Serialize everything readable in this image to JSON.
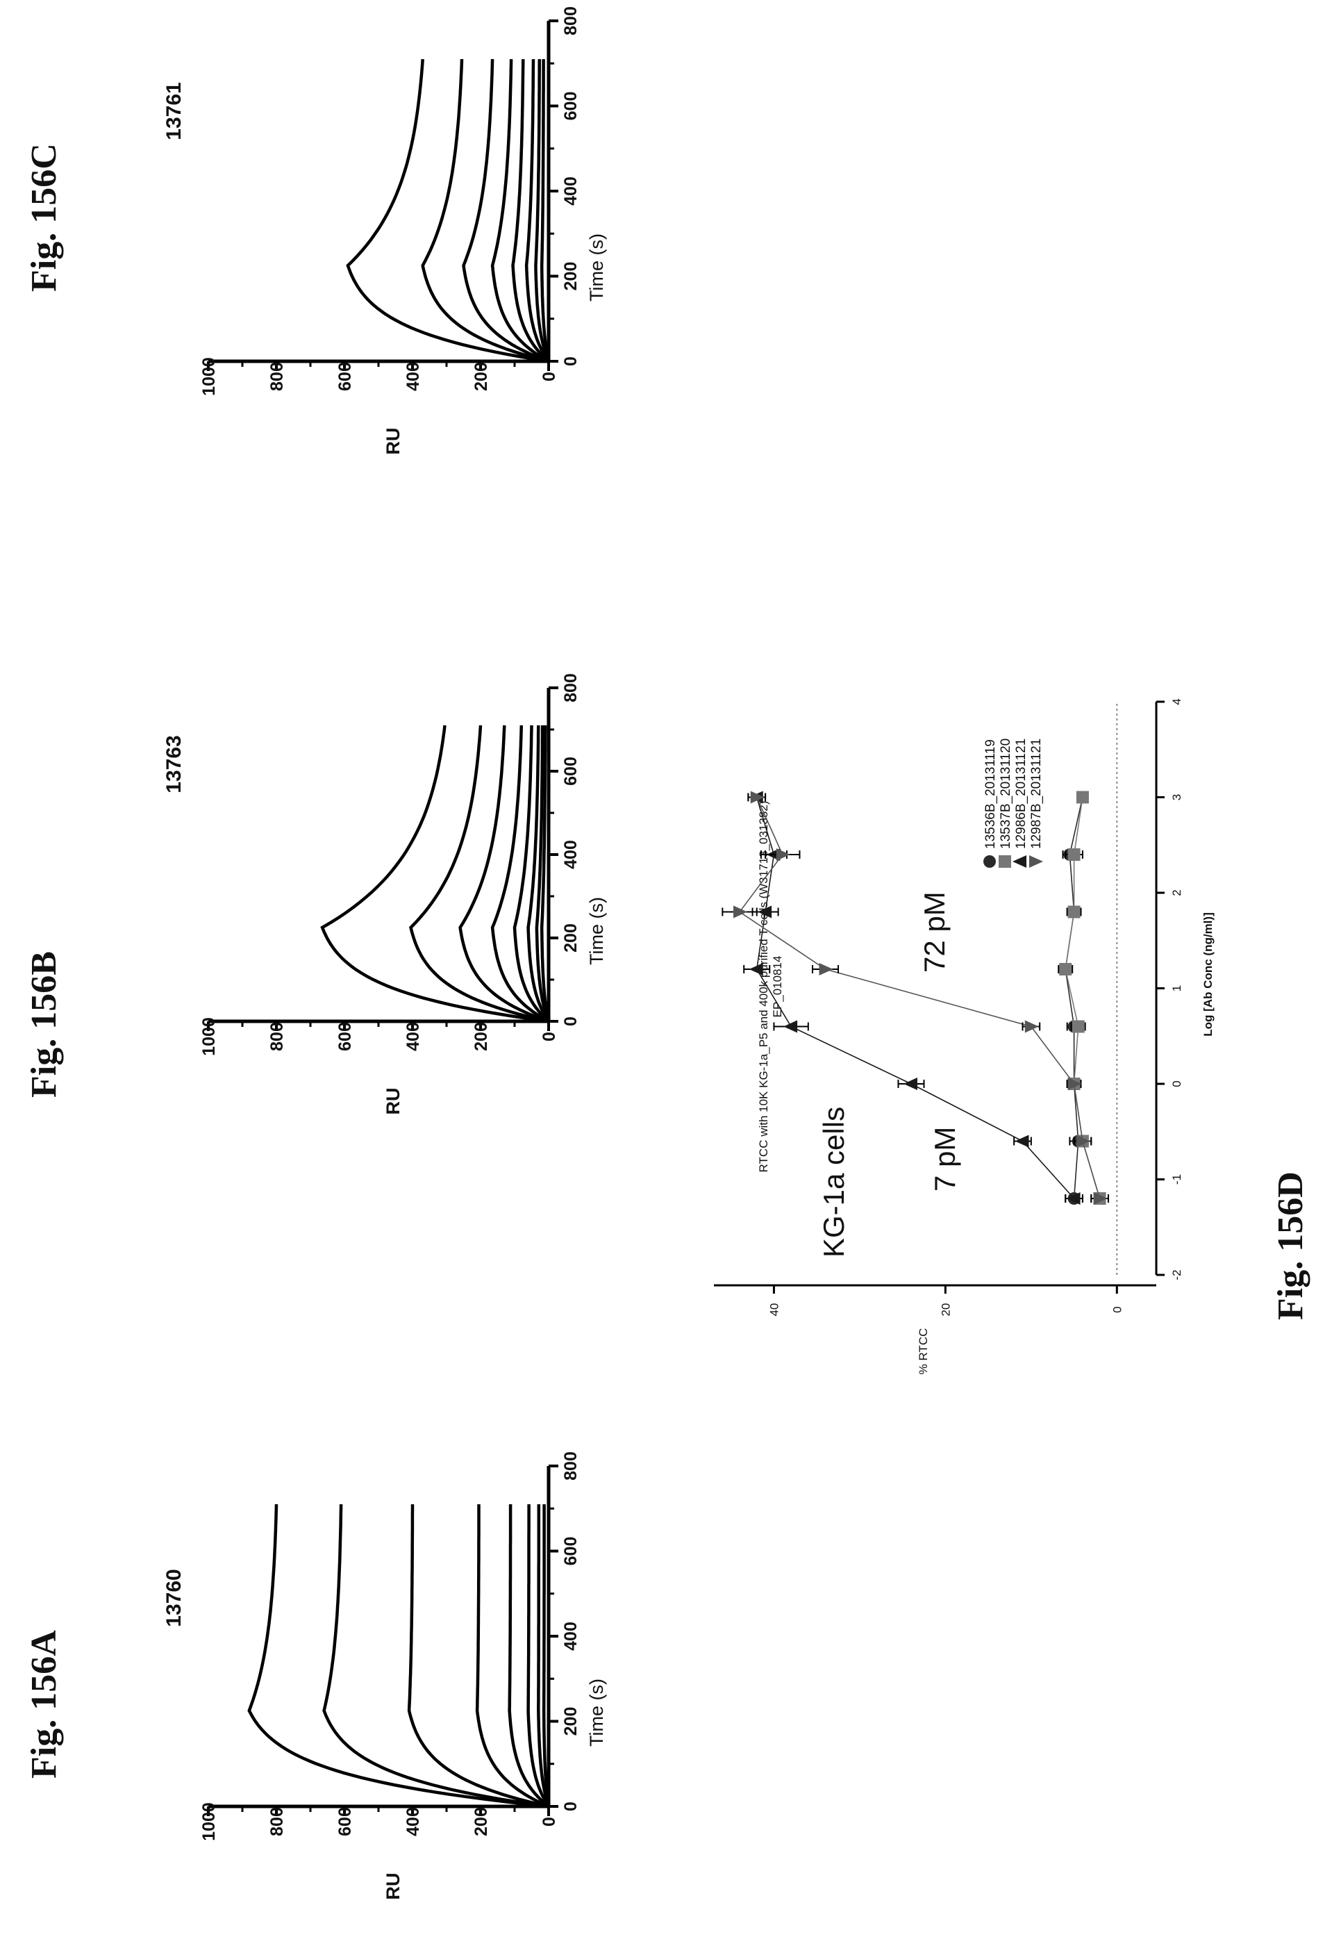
{
  "figure_labels": {
    "a": "Fig. 156A",
    "b": "Fig. 156B",
    "c": "Fig. 156C",
    "d": "Fig. 156D"
  },
  "chart_data": [
    {
      "type": "line",
      "title": "13760",
      "xlabel": "Time (s)",
      "ylabel": "RU",
      "xlim": [
        0,
        800
      ],
      "ylim": [
        0,
        1000
      ],
      "xticks": [
        0,
        200,
        400,
        600,
        800
      ],
      "yticks": [
        0,
        200,
        400,
        600,
        800,
        1000
      ],
      "injection_end": 225,
      "run_end": 710,
      "series": [
        {
          "peak": 880,
          "end": 800
        },
        {
          "peak": 660,
          "end": 610
        },
        {
          "peak": 410,
          "end": 400
        },
        {
          "peak": 210,
          "end": 205
        },
        {
          "peak": 115,
          "end": 112
        },
        {
          "peak": 60,
          "end": 58
        },
        {
          "peak": 30,
          "end": 29
        },
        {
          "peak": 14,
          "end": 13
        }
      ]
    },
    {
      "type": "line",
      "title": "13763",
      "xlabel": "Time (s)",
      "ylabel": "RU",
      "xlim": [
        0,
        800
      ],
      "ylim": [
        0,
        1000
      ],
      "xticks": [
        0,
        200,
        400,
        600,
        800
      ],
      "yticks": [
        0,
        200,
        400,
        600,
        800,
        1000
      ],
      "injection_end": 225,
      "run_end": 710,
      "series": [
        {
          "peak": 665,
          "end": 305
        },
        {
          "peak": 405,
          "end": 200
        },
        {
          "peak": 260,
          "end": 130
        },
        {
          "peak": 165,
          "end": 80
        },
        {
          "peak": 100,
          "end": 50
        },
        {
          "peak": 60,
          "end": 30
        },
        {
          "peak": 35,
          "end": 18
        },
        {
          "peak": 20,
          "end": 10
        }
      ]
    },
    {
      "type": "line",
      "title": "13761",
      "xlabel": "Time (s)",
      "ylabel": "RU",
      "xlim": [
        0,
        800
      ],
      "ylim": [
        0,
        1000
      ],
      "xticks": [
        0,
        200,
        400,
        600,
        800
      ],
      "yticks": [
        0,
        200,
        400,
        600,
        800,
        1000
      ],
      "injection_end": 225,
      "run_end": 710,
      "series": [
        {
          "peak": 590,
          "end": 370
        },
        {
          "peak": 370,
          "end": 255
        },
        {
          "peak": 250,
          "end": 165
        },
        {
          "peak": 165,
          "end": 110
        },
        {
          "peak": 105,
          "end": 75
        },
        {
          "peak": 65,
          "end": 45
        },
        {
          "peak": 38,
          "end": 27
        },
        {
          "peak": 20,
          "end": 15
        }
      ]
    },
    {
      "type": "line",
      "title": "RTCC with 10K KG-1a_P5 and 400k purified T cells (W31713_031382)",
      "subtitle": "EP_010814",
      "xlabel": "Log [Ab Conc (ng/ml)]",
      "ylabel": "% RTCC",
      "xlim": [
        -2,
        4
      ],
      "ylim": [
        -2,
        47
      ],
      "xticks": [
        -2,
        -1,
        0,
        1,
        2,
        3,
        4
      ],
      "yticks": [
        0,
        20,
        40
      ],
      "legend_position": "right",
      "annotations": [
        "KG-1a cells",
        "7 pM",
        "72 pM"
      ],
      "series": [
        {
          "name": "13536B_20131119",
          "marker": "circle",
          "x": [
            -1.2,
            -0.6,
            0.0,
            0.6,
            1.2,
            1.8,
            2.4,
            3.0
          ],
          "y": [
            5.0,
            4.5,
            5.0,
            5.0,
            6.0,
            5.0,
            5.5,
            4.0
          ],
          "err": [
            1.0,
            1.0,
            0.8,
            0.8,
            0.8,
            0.8,
            0.8,
            0.5
          ]
        },
        {
          "name": "13537B_20131120",
          "marker": "square",
          "x": [
            -1.2,
            -0.6,
            0.0,
            0.6,
            1.2,
            1.8,
            2.4,
            3.0
          ],
          "y": [
            2.0,
            4.0,
            5.0,
            4.5,
            6.0,
            5.0,
            5.0,
            4.0
          ],
          "err": [
            1.0,
            1.0,
            0.8,
            0.8,
            0.8,
            0.8,
            1.0,
            0.5
          ]
        },
        {
          "name": "12986B_20131121",
          "marker": "triangle-up",
          "x": [
            -1.2,
            -0.6,
            0.0,
            0.6,
            1.2,
            1.8,
            2.4,
            3.0
          ],
          "y": [
            5.0,
            11.0,
            24.0,
            38.0,
            42.0,
            41.0,
            40.0,
            42.0
          ],
          "err": [
            1.0,
            1.0,
            1.5,
            2.0,
            1.5,
            1.5,
            1.5,
            1.0
          ]
        },
        {
          "name": "12987B_20131121",
          "marker": "triangle-down",
          "x": [
            -1.2,
            -0.6,
            0.0,
            0.6,
            1.2,
            1.8,
            2.4,
            3.0
          ],
          "y": [
            2.0,
            4.0,
            5.0,
            10.0,
            34.0,
            44.0,
            39.0,
            42.0
          ],
          "err": [
            1.0,
            1.0,
            0.8,
            1.0,
            1.5,
            2.0,
            2.0,
            1.0
          ]
        }
      ]
    }
  ]
}
